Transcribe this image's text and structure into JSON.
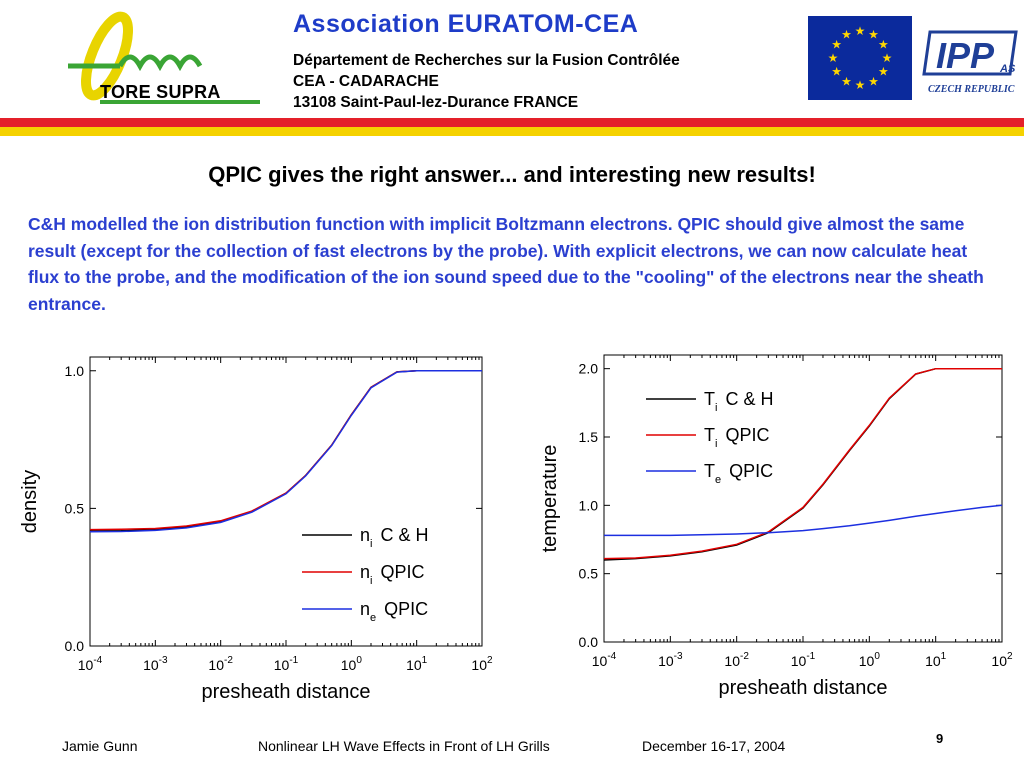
{
  "header": {
    "logo_text": "TORE SUPRA",
    "title": "Association  EURATOM-CEA",
    "lines": [
      "Département de Recherches sur la Fusion Contrôlée",
      "CEA - CADARACHE",
      "13108 Saint-Paul-lez-Durance   FRANCE"
    ],
    "ipp_logo_text": "IPP",
    "ipp_logo_sub": "AS",
    "ipp_country": "CZECH REPUBLIC"
  },
  "colors": {
    "accent_blue": "#1e3cc8",
    "stripe_red": "#e4202a",
    "stripe_yellow": "#f5d200",
    "logo_green": "#3aa535",
    "logo_yellow": "#e8d400",
    "series_black": "#000000",
    "series_red": "#e00000",
    "series_blue": "#1c2fe0"
  },
  "slide": {
    "title": "QPIC gives the right answer... and interesting new results!",
    "intro": "C&H modelled the ion distribution function with implicit Boltzmann electrons. QPIC should give almost the same result (except for the collection of fast electrons by the probe). With explicit electrons, we can now calculate heat flux to the probe, and the modification of the ion sound speed due to the \"cooling\" of the electrons near the sheath entrance."
  },
  "chart_data": [
    {
      "type": "line",
      "xlabel": "presheath distance",
      "ylabel": "density",
      "xscale": "log",
      "xlim": [
        0.0001,
        100
      ],
      "ylim": [
        0,
        1.05
      ],
      "x_ticks": [
        {
          "base": "10",
          "exp": "-4"
        },
        {
          "base": "10",
          "exp": "-3"
        },
        {
          "base": "10",
          "exp": "-2"
        },
        {
          "base": "10",
          "exp": "-1"
        },
        {
          "base": "10",
          "exp": "0"
        },
        {
          "base": "10",
          "exp": "1"
        },
        {
          "base": "10",
          "exp": "2"
        }
      ],
      "y_ticks": [
        "0.0",
        "0.5",
        "1.0"
      ],
      "legend_position": "lower-right",
      "x": [
        0.0001,
        0.0003,
        0.001,
        0.003,
        0.01,
        0.03,
        0.1,
        0.2,
        0.5,
        1,
        2,
        5,
        10,
        20,
        50,
        100
      ],
      "series": [
        {
          "name_main": "n",
          "name_sub": "i",
          "name_rest": "C & H",
          "color": "#000000",
          "values": [
            0.418,
            0.419,
            0.423,
            0.432,
            0.452,
            0.488,
            0.555,
            0.62,
            0.73,
            0.84,
            0.94,
            0.996,
            1.0,
            1.0,
            1.0,
            1.0
          ]
        },
        {
          "name_main": "n",
          "name_sub": "i",
          "name_rest": "QPIC",
          "color": "#e00000",
          "values": [
            0.423,
            0.424,
            0.427,
            0.436,
            0.455,
            0.49,
            0.556,
            0.62,
            0.73,
            0.84,
            0.94,
            0.996,
            1.0,
            1.0,
            1.0,
            1.0
          ]
        },
        {
          "name_main": "n",
          "name_sub": "e",
          "name_rest": "QPIC",
          "color": "#1c2fe0",
          "values": [
            0.415,
            0.416,
            0.42,
            0.429,
            0.449,
            0.486,
            0.553,
            0.618,
            0.728,
            0.838,
            0.938,
            0.995,
            1.0,
            1.0,
            1.0,
            1.0
          ]
        }
      ]
    },
    {
      "type": "line",
      "xlabel": "presheath distance",
      "ylabel": "temperature",
      "xscale": "log",
      "xlim": [
        0.0001,
        100
      ],
      "ylim": [
        0,
        2.1
      ],
      "x_ticks": [
        {
          "base": "10",
          "exp": "-4"
        },
        {
          "base": "10",
          "exp": "-3"
        },
        {
          "base": "10",
          "exp": "-2"
        },
        {
          "base": "10",
          "exp": "-1"
        },
        {
          "base": "10",
          "exp": "0"
        },
        {
          "base": "10",
          "exp": "1"
        },
        {
          "base": "10",
          "exp": "2"
        }
      ],
      "y_ticks": [
        "0.0",
        "0.5",
        "1.0",
        "1.5",
        "2.0"
      ],
      "legend_position": "upper-left",
      "x": [
        0.0001,
        0.0003,
        0.001,
        0.003,
        0.01,
        0.03,
        0.1,
        0.2,
        0.5,
        1,
        2,
        5,
        10,
        20,
        50,
        100
      ],
      "series": [
        {
          "name_main": "T",
          "name_sub": "i",
          "name_rest": "C & H",
          "color": "#000000",
          "values": [
            0.6,
            0.61,
            0.63,
            0.66,
            0.71,
            0.8,
            0.98,
            1.15,
            1.4,
            1.58,
            1.78,
            1.96,
            2.0,
            2.0,
            2.0,
            2.0
          ]
        },
        {
          "name_main": "T",
          "name_sub": "i",
          "name_rest": "QPIC",
          "color": "#e00000",
          "values": [
            0.61,
            0.615,
            0.635,
            0.665,
            0.715,
            0.805,
            0.985,
            1.155,
            1.405,
            1.585,
            1.785,
            1.962,
            2.0,
            2.0,
            2.0,
            2.0
          ]
        },
        {
          "name_main": "T",
          "name_sub": "e",
          "name_rest": "QPIC",
          "color": "#1c2fe0",
          "values": [
            0.78,
            0.78,
            0.78,
            0.785,
            0.79,
            0.8,
            0.815,
            0.83,
            0.85,
            0.87,
            0.89,
            0.92,
            0.94,
            0.96,
            0.985,
            1.0
          ]
        }
      ]
    }
  ],
  "footer": {
    "author": "Jamie Gunn",
    "talk_title": "Nonlinear LH Wave Effects in Front of LH Grills",
    "date": "December 16-17, 2004",
    "page_number": "9"
  }
}
